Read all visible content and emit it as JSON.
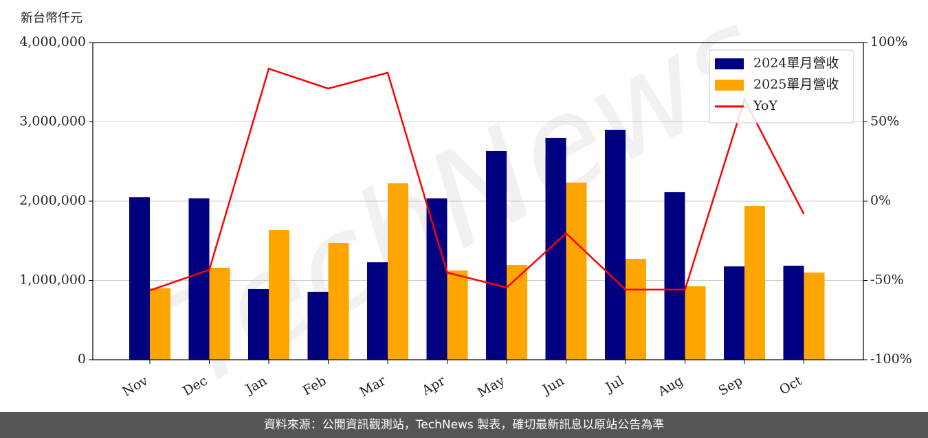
{
  "chart_data": {
    "type": "bar",
    "y_label": "新台幣仟元",
    "categories": [
      "Nov",
      "Dec",
      "Jan",
      "Feb",
      "Mar",
      "Apr",
      "May",
      "Jun",
      "Jul",
      "Aug",
      "Sep",
      "Oct"
    ],
    "series": [
      {
        "name": "2024單月營收",
        "color": "#000080",
        "values": [
          2050000,
          2035000,
          892000,
          857000,
          1229000,
          2035000,
          2632000,
          2797000,
          2900000,
          2113000,
          1177000,
          1186000
        ]
      },
      {
        "name": "2025單月營收",
        "color": "#ffa500",
        "values": [
          900000,
          1160000,
          1636000,
          1472000,
          2225000,
          1126000,
          1195000,
          2234000,
          1273000,
          926000,
          1939000,
          1100000
        ]
      },
      {
        "name": "YoY",
        "type": "line",
        "axis": "y2",
        "color": "#ff0000",
        "values": [
          -56.3,
          -43.3,
          83.5,
          71.0,
          81.0,
          -45.0,
          -54.5,
          -20.3,
          -55.8,
          -55.8,
          64.1,
          -8.2
        ]
      }
    ],
    "ylim": [
      0,
      4000000
    ],
    "yticks": [
      {
        "value": 0,
        "label": "0"
      },
      {
        "value": 1000000,
        "label": "1,000,000"
      },
      {
        "value": 2000000,
        "label": "2,000,000"
      },
      {
        "value": 3000000,
        "label": "3,000,000"
      },
      {
        "value": 4000000,
        "label": "4,000,000"
      }
    ],
    "y2lim": [
      -100,
      100
    ],
    "y2ticks": [
      {
        "value": -100,
        "label": "-100%"
      },
      {
        "value": -50,
        "label": "-50%"
      },
      {
        "value": 0,
        "label": "0%"
      },
      {
        "value": 50,
        "label": "50%"
      },
      {
        "value": 100,
        "label": "100%"
      }
    ],
    "grid": true,
    "legend": "upper right"
  },
  "footer": "資料來源：公開資訊觀測站，TechNews 製表，確切最新訊息以原站公告為準"
}
